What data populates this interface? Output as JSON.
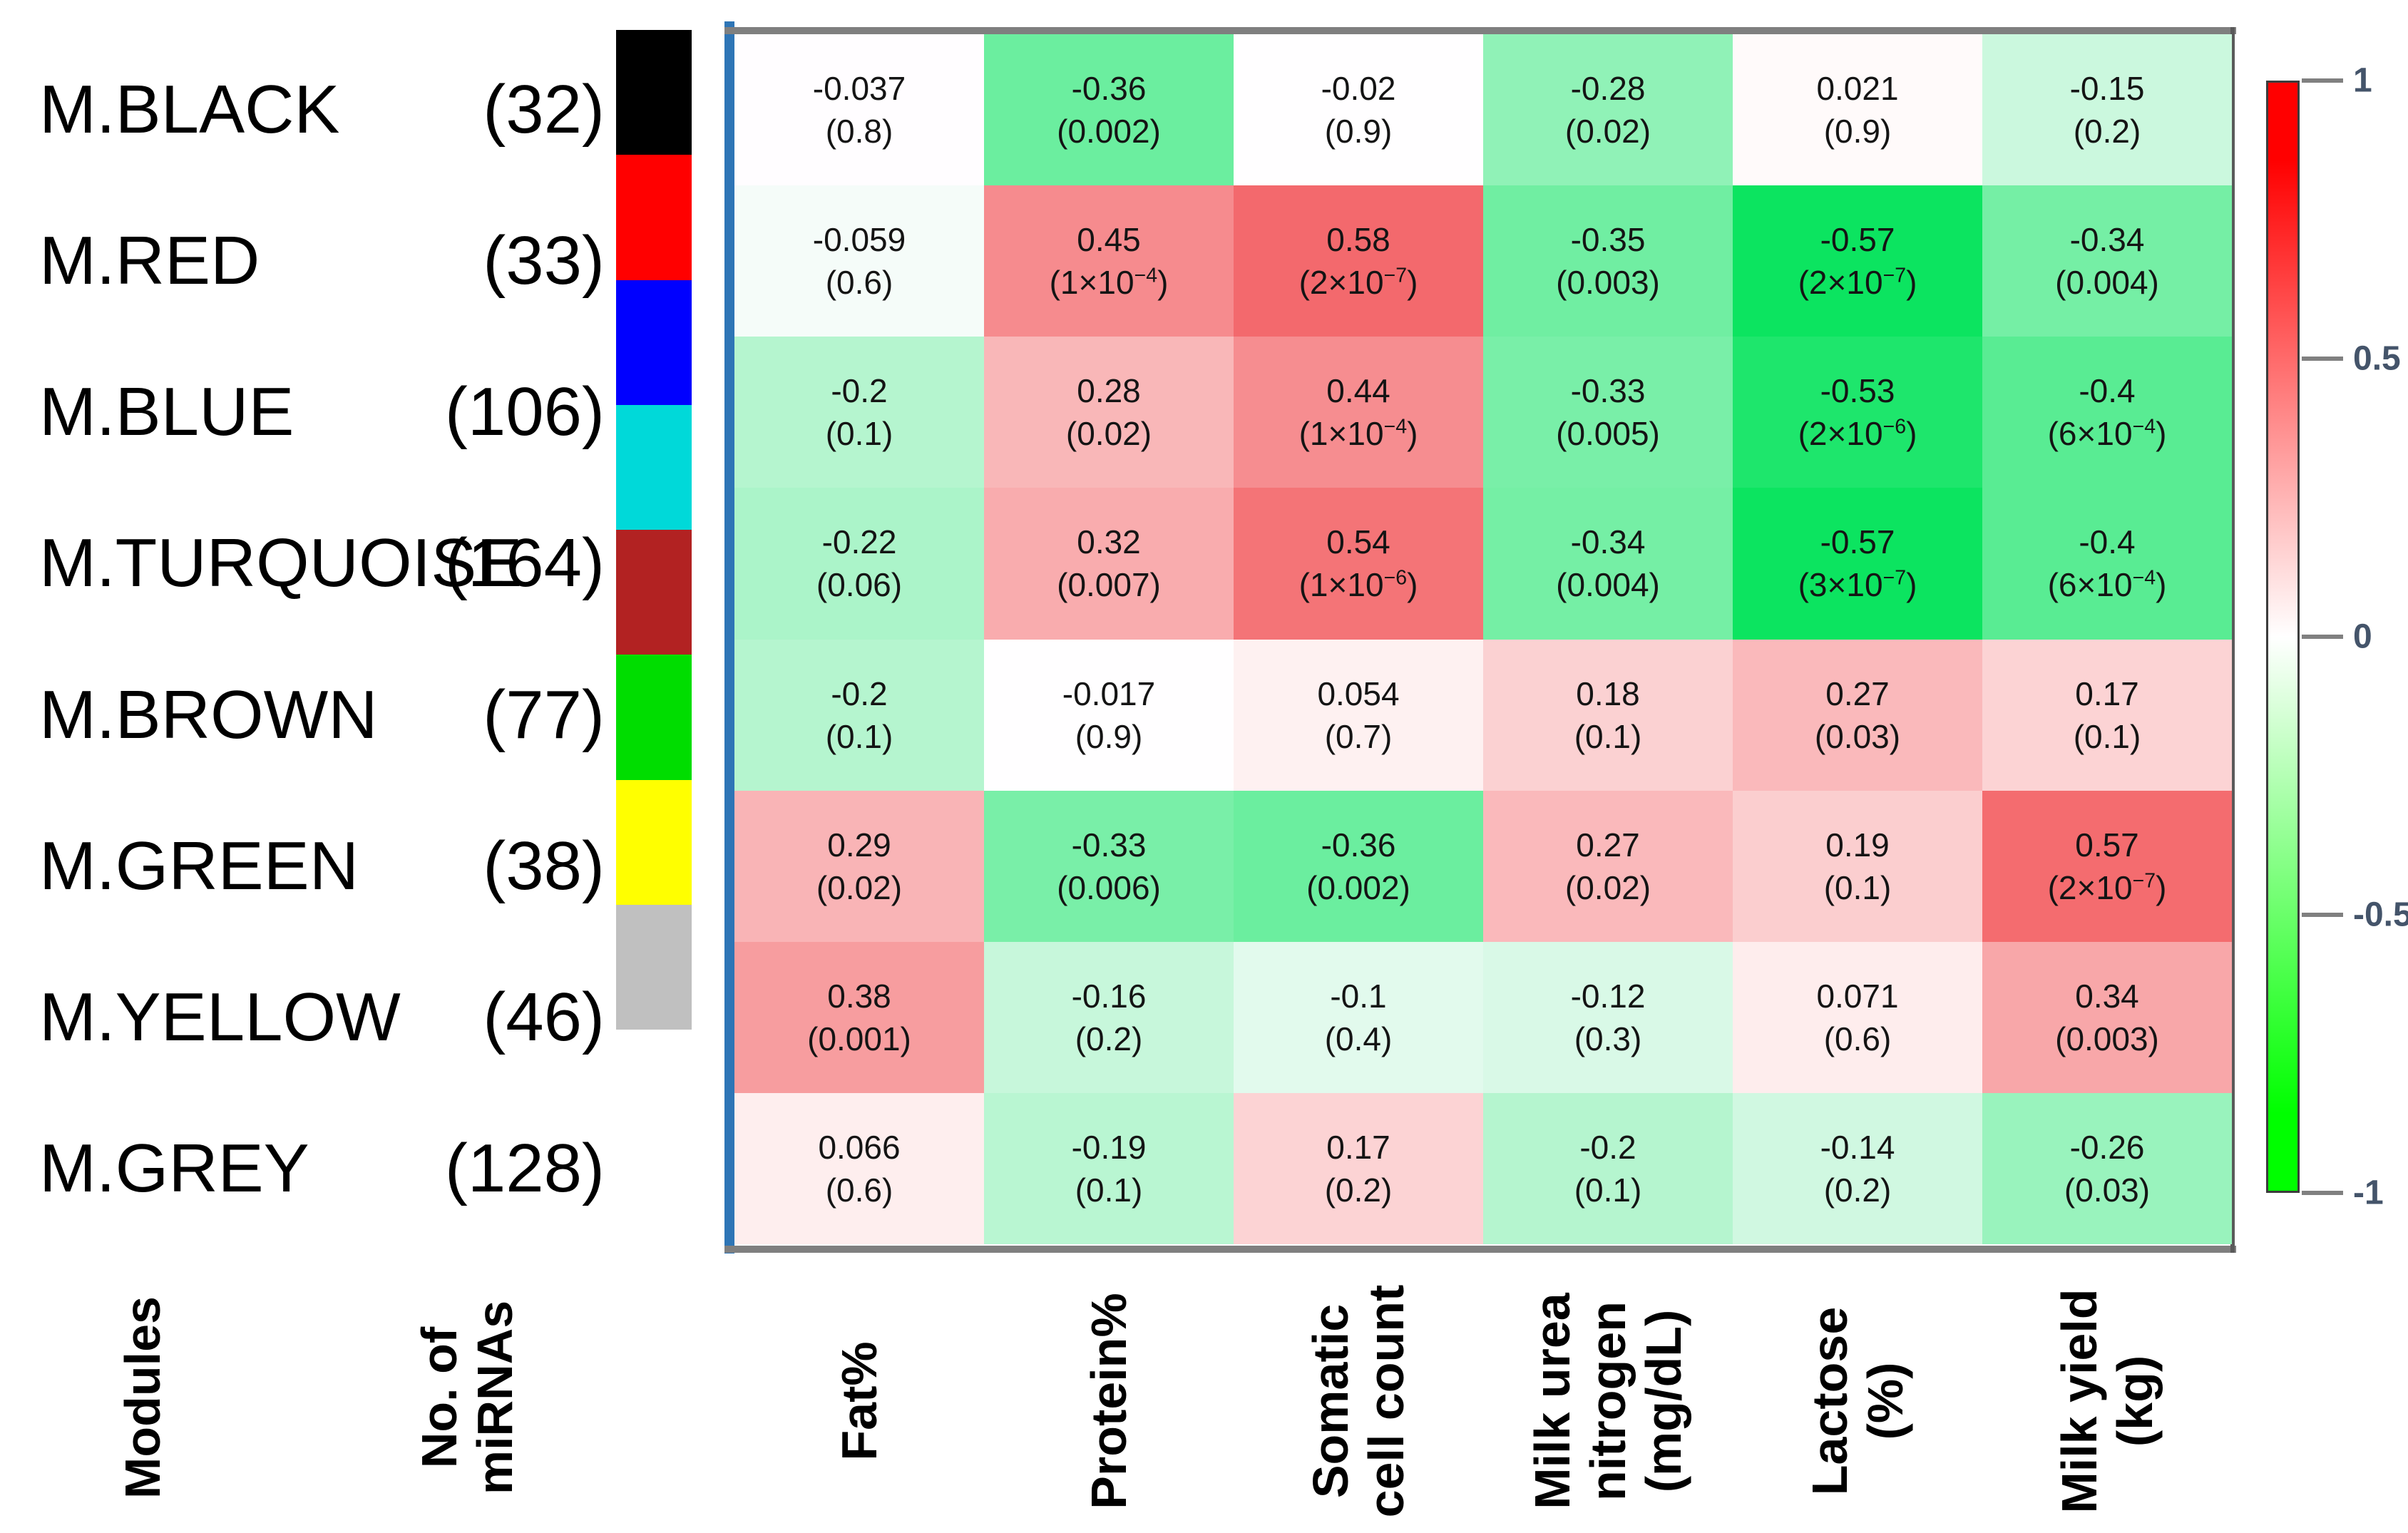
{
  "rows": [
    {
      "module": "M.BLACK",
      "count": "(32)",
      "swatch": "#000000",
      "cells": [
        {
          "r": "-0.037",
          "p": "0.8"
        },
        {
          "r": "-0.36",
          "p": "0.002"
        },
        {
          "r": "-0.02",
          "p": "0.9"
        },
        {
          "r": "-0.28",
          "p": "0.02"
        },
        {
          "r": "0.021",
          "p": "0.9"
        },
        {
          "r": "-0.15",
          "p": "0.2"
        }
      ]
    },
    {
      "module": "M.RED",
      "count": "(33)",
      "swatch": "#ff0000",
      "cells": [
        {
          "r": "-0.059",
          "p": "0.6"
        },
        {
          "r": "0.45",
          "p": "1×10",
          "e": "−4"
        },
        {
          "r": "0.58",
          "p": "2×10",
          "e": "−7"
        },
        {
          "r": "-0.35",
          "p": "0.003"
        },
        {
          "r": "-0.57",
          "p": "2×10",
          "e": "−7"
        },
        {
          "r": "-0.34",
          "p": "0.004"
        }
      ]
    },
    {
      "module": "M.BLUE",
      "count": "(106)",
      "swatch": "#0000ff",
      "cells": [
        {
          "r": "-0.2",
          "p": "0.1"
        },
        {
          "r": "0.28",
          "p": "0.02"
        },
        {
          "r": "0.44",
          "p": "1×10",
          "e": "−4"
        },
        {
          "r": "-0.33",
          "p": "0.005"
        },
        {
          "r": "-0.53",
          "p": "2×10",
          "e": "−6"
        },
        {
          "r": "-0.4",
          "p": "6×10",
          "e": "−4"
        }
      ]
    },
    {
      "module": "M.TURQUOISE",
      "count": "(164)",
      "swatch": "#00d9d9",
      "cells": [
        {
          "r": "-0.22",
          "p": "0.06"
        },
        {
          "r": "0.32",
          "p": "0.007"
        },
        {
          "r": "0.54",
          "p": "1×10",
          "e": "−6"
        },
        {
          "r": "-0.34",
          "p": "0.004"
        },
        {
          "r": "-0.57",
          "p": "3×10",
          "e": "−7"
        },
        {
          "r": "-0.4",
          "p": "6×10",
          "e": "−4"
        }
      ]
    },
    {
      "module": "M.BROWN",
      "count": "(77)",
      "swatch": "#b22222",
      "cells": [
        {
          "r": "-0.2",
          "p": "0.1"
        },
        {
          "r": "-0.017",
          "p": "0.9"
        },
        {
          "r": "0.054",
          "p": "0.7"
        },
        {
          "r": "0.18",
          "p": "0.1"
        },
        {
          "r": "0.27",
          "p": "0.03"
        },
        {
          "r": "0.17",
          "p": "0.1"
        }
      ]
    },
    {
      "module": "M.GREEN",
      "count": "(38)",
      "swatch": "#00dd00",
      "cells": [
        {
          "r": "0.29",
          "p": "0.02"
        },
        {
          "r": "-0.33",
          "p": "0.006"
        },
        {
          "r": "-0.36",
          "p": "0.002"
        },
        {
          "r": "0.27",
          "p": "0.02"
        },
        {
          "r": "0.19",
          "p": "0.1"
        },
        {
          "r": "0.57",
          "p": "2×10",
          "e": "−7"
        }
      ]
    },
    {
      "module": "M.YELLOW",
      "count": "(46)",
      "swatch": "#ffff00",
      "cells": [
        {
          "r": "0.38",
          "p": "0.001"
        },
        {
          "r": "-0.16",
          "p": "0.2"
        },
        {
          "r": "-0.1",
          "p": "0.4"
        },
        {
          "r": "-0.12",
          "p": "0.3"
        },
        {
          "r": "0.071",
          "p": "0.6"
        },
        {
          "r": "0.34",
          "p": "0.003"
        }
      ]
    },
    {
      "module": "M.GREY",
      "count": "(128)",
      "swatch": "#c0c0c0",
      "cells": [
        {
          "r": "0.066",
          "p": "0.6"
        },
        {
          "r": "-0.19",
          "p": "0.1"
        },
        {
          "r": "0.17",
          "p": "0.2"
        },
        {
          "r": "-0.2",
          "p": "0.1"
        },
        {
          "r": "-0.14",
          "p": "0.2"
        },
        {
          "r": "-0.26",
          "p": "0.03"
        }
      ]
    }
  ],
  "columns": [
    [
      "Fat%"
    ],
    [
      "Protein%"
    ],
    [
      "Somatic",
      "cell count"
    ],
    [
      "Milk urea",
      "nitrogen",
      "(mg/dL)"
    ],
    [
      "Lactose",
      "(%)"
    ],
    [
      "Milk yield",
      "(kg)"
    ]
  ],
  "axis_labels": {
    "modules": "Modules",
    "mirna_lines": [
      "No. of",
      "miRNAs"
    ]
  },
  "colorbar": {
    "ticks": [
      "1",
      "0.5",
      "0",
      "-0.5",
      "-1"
    ],
    "top_color": "#ff0000",
    "mid_color": "#ffffff",
    "bottom_color": "#00ff00",
    "tick_text_color": "#44546a"
  },
  "frame": {
    "left_border_color": "#2e75b6",
    "h_border_color": "#7f7f7f",
    "right_border_color": "#5a5a5a"
  },
  "chart_data": {
    "type": "heatmap",
    "rows": [
      "M.BLACK",
      "M.RED",
      "M.BLUE",
      "M.TURQUOISE",
      "M.BROWN",
      "M.GREEN",
      "M.YELLOW",
      "M.GREY"
    ],
    "row_mirna_counts": [
      32,
      33,
      106,
      164,
      77,
      38,
      46,
      128
    ],
    "row_swatch_colors": [
      "#000000",
      "#ff0000",
      "#0000ff",
      "#00d9d9",
      "#b22222",
      "#00dd00",
      "#ffff00",
      "#c0c0c0"
    ],
    "columns": [
      "Fat%",
      "Protein%",
      "Somatic cell count",
      "Milk urea nitrogen (mg/dL)",
      "Lactose (%)",
      "Milk yield (kg)"
    ],
    "correlations": [
      [
        -0.037,
        -0.36,
        -0.02,
        -0.28,
        0.021,
        -0.15
      ],
      [
        -0.059,
        0.45,
        0.58,
        -0.35,
        -0.57,
        -0.34
      ],
      [
        -0.2,
        0.28,
        0.44,
        -0.33,
        -0.53,
        -0.4
      ],
      [
        -0.22,
        0.32,
        0.54,
        -0.34,
        -0.57,
        -0.4
      ],
      [
        -0.2,
        -0.017,
        0.054,
        0.18,
        0.27,
        0.17
      ],
      [
        0.29,
        -0.33,
        -0.36,
        0.27,
        0.19,
        0.57
      ],
      [
        0.38,
        -0.16,
        -0.1,
        -0.12,
        0.071,
        0.34
      ],
      [
        0.066,
        -0.19,
        0.17,
        -0.2,
        -0.14,
        -0.26
      ]
    ],
    "p_values": [
      [
        "0.8",
        "0.002",
        "0.9",
        "0.02",
        "0.9",
        "0.2"
      ],
      [
        "0.6",
        "1×10−4",
        "2×10−7",
        "0.003",
        "2×10−7",
        "0.004"
      ],
      [
        "0.1",
        "0.02",
        "1×10−4",
        "0.005",
        "2×10−6",
        "6×10−4"
      ],
      [
        "0.06",
        "0.007",
        "1×10−6",
        "0.004",
        "3×10−7",
        "6×10−4"
      ],
      [
        "0.1",
        "0.9",
        "0.7",
        "0.1",
        "0.03",
        "0.1"
      ],
      [
        "0.02",
        "0.006",
        "0.002",
        "0.02",
        "0.1",
        "2×10−7"
      ],
      [
        "0.001",
        "0.2",
        "0.4",
        "0.3",
        "0.6",
        "0.003"
      ],
      [
        "0.6",
        "0.1",
        "0.2",
        "0.1",
        "0.2",
        "0.03"
      ]
    ],
    "colorscale": {
      "min": -1,
      "max": 1,
      "min_color": "#00ff00",
      "mid_color": "#ffffff",
      "max_color": "#ff0000",
      "legend_ticks": [
        1,
        0.5,
        0,
        -0.5,
        -1
      ],
      "legend_position": "right"
    },
    "grid": false
  }
}
